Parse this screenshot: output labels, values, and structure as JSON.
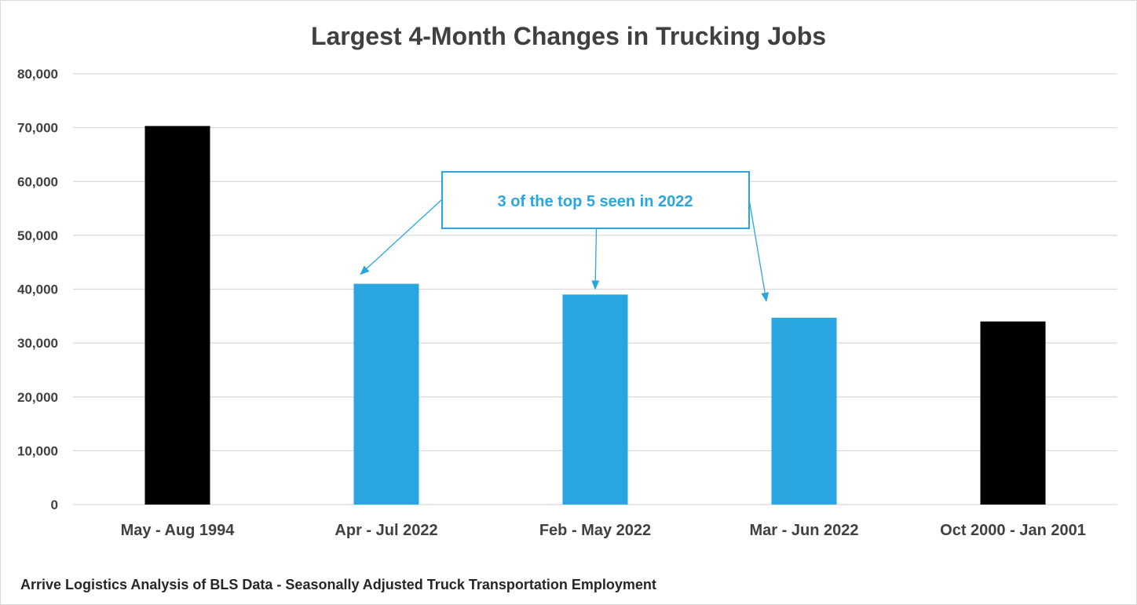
{
  "chart_data": {
    "type": "bar",
    "title": "Largest 4-Month Changes in Trucking Jobs",
    "categories": [
      "May - Aug 1994",
      "Apr - Jul 2022",
      "Feb - May 2022",
      "Mar - Jun 2022",
      "Oct 2000 - Jan 2001"
    ],
    "values": [
      70300,
      41000,
      39000,
      34700,
      34000
    ],
    "bar_colors": [
      "#000000",
      "#29a6e0",
      "#29a6e0",
      "#29a6e0",
      "#000000"
    ],
    "ylim": [
      0,
      80000
    ],
    "yticks": [
      "0",
      "10,000",
      "20,000",
      "30,000",
      "40,000",
      "50,000",
      "60,000",
      "70,000",
      "80,000"
    ],
    "grid": true,
    "xlabel": "",
    "ylabel": "",
    "annotation": {
      "text": "3 of the top 5 seen in 2022",
      "color": "#29a6e0",
      "points_to": [
        "Apr - Jul 2022",
        "Feb - May 2022",
        "Mar - Jun 2022"
      ]
    },
    "source": "Arrive Logistics Analysis of BLS Data - Seasonally Adjusted Truck Transportation  Employment"
  }
}
